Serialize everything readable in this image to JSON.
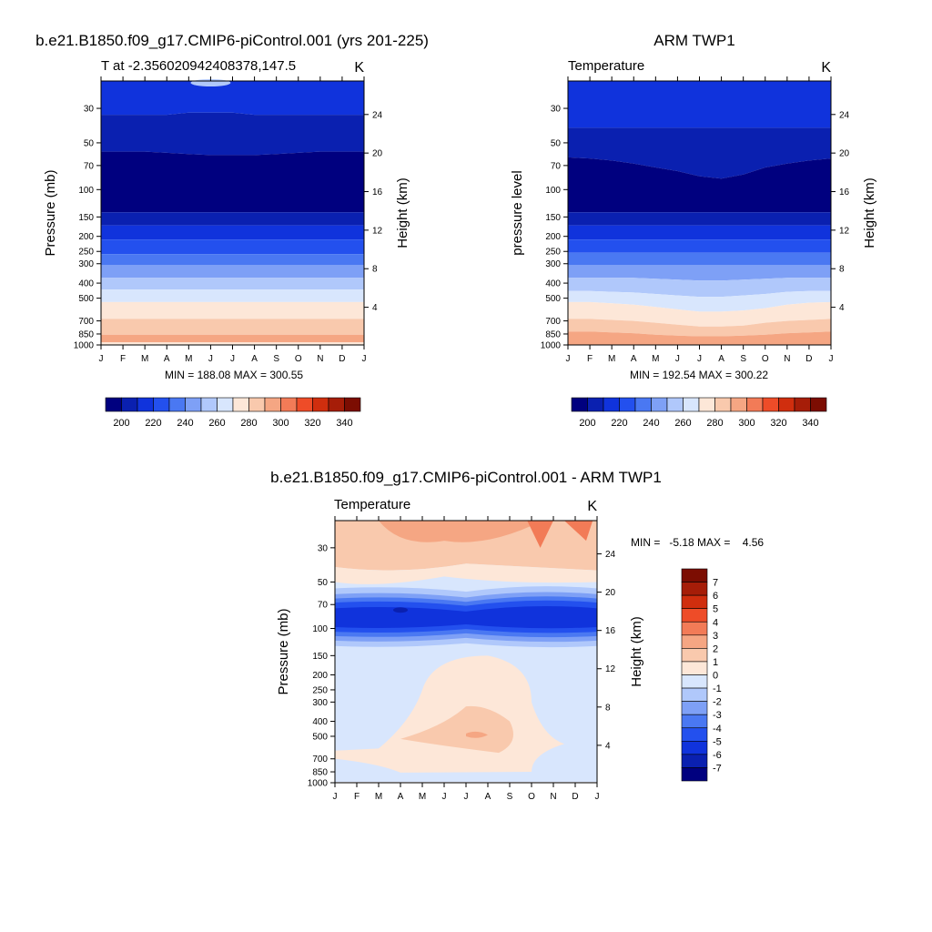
{
  "chart_data": [
    {
      "type": "contour",
      "id": "p1",
      "title": "b.e21.B1850.f09_g17.CMIP6-piControl.001 (yrs 201-225)",
      "left_string": "T at -2.356020942408378,147.5",
      "right_string": "K",
      "ylabel": "Pressure (mb)",
      "ylabel_right": "Height (km)",
      "x_ticks": [
        "J",
        "F",
        "M",
        "A",
        "M",
        "J",
        "J",
        "A",
        "S",
        "O",
        "N",
        "D",
        "J"
      ],
      "y_ticks": [
        30,
        50,
        70,
        100,
        150,
        200,
        250,
        300,
        400,
        500,
        700,
        850,
        1000
      ],
      "y_ticks_right": [
        24,
        20,
        16,
        12,
        8,
        4
      ],
      "ylim": [
        1000,
        20
      ],
      "summary": "MIN = 188.08 MAX = 300.55",
      "min": 188.08,
      "max": 300.55,
      "band_boundaries_mb": {
        "levels": [
          {
            "mb": [
              20,
              20,
              20,
              20,
              20,
              20,
              20,
              20,
              20,
              20,
              20,
              20,
              20
            ],
            "color": "#1033dc"
          },
          {
            "mb": [
              33,
              33,
              33,
              33,
              32,
              32,
              32,
              33,
              33,
              33,
              33,
              33,
              33
            ],
            "color": "#0a20b0"
          },
          {
            "mb": [
              57,
              57,
              57,
              58,
              59,
              60,
              60,
              60,
              59,
              58,
              57,
              57,
              57
            ],
            "color": "#00007f"
          },
          {
            "mb": [
              140,
              140,
              140,
              140,
              140,
              140,
              140,
              140,
              140,
              140,
              140,
              140,
              140
            ],
            "color": "#0a20b0"
          },
          {
            "mb": [
              170,
              170,
              170,
              170,
              170,
              170,
              170,
              170,
              170,
              170,
              170,
              170,
              170
            ],
            "color": "#1033dc"
          },
          {
            "mb": [
              210,
              210,
              210,
              210,
              210,
              210,
              210,
              210,
              210,
              210,
              210,
              210,
              210
            ],
            "color": "#2350ee"
          },
          {
            "mb": [
              260,
              260,
              260,
              260,
              260,
              260,
              260,
              260,
              260,
              260,
              260,
              260,
              260
            ],
            "color": "#4a78f2"
          },
          {
            "mb": [
              305,
              305,
              305,
              305,
              305,
              305,
              305,
              305,
              305,
              305,
              305,
              305,
              305
            ],
            "color": "#7ea0f6"
          },
          {
            "mb": [
              370,
              370,
              370,
              370,
              370,
              370,
              370,
              370,
              370,
              370,
              370,
              370,
              370
            ],
            "color": "#b0c8fb"
          },
          {
            "mb": [
              440,
              440,
              440,
              440,
              440,
              440,
              440,
              440,
              440,
              440,
              440,
              440,
              440
            ],
            "color": "#d8e6fd"
          },
          {
            "mb": [
              530,
              530,
              530,
              530,
              530,
              530,
              530,
              530,
              530,
              530,
              530,
              530,
              530
            ],
            "color": "#fde7d8"
          },
          {
            "mb": [
              680,
              680,
              680,
              680,
              680,
              680,
              680,
              680,
              680,
              680,
              680,
              680,
              680
            ],
            "color": "#f9c9ad"
          },
          {
            "mb": [
              860,
              860,
              860,
              860,
              860,
              860,
              860,
              860,
              860,
              860,
              860,
              860,
              860
            ],
            "color": "#f5a683"
          }
        ],
        "top_patch": {
          "color": "#b0c8fb",
          "note": "small cyan patch near top around Jun"
        }
      }
    },
    {
      "type": "contour",
      "id": "p2",
      "title": "ARM TWP1",
      "left_string": "Temperature",
      "right_string": "K",
      "ylabel": "pressure level",
      "ylabel_right": "Height (km)",
      "x_ticks": [
        "J",
        "F",
        "M",
        "A",
        "M",
        "J",
        "J",
        "A",
        "S",
        "O",
        "N",
        "D",
        "J"
      ],
      "y_ticks": [
        30,
        50,
        70,
        100,
        150,
        200,
        250,
        300,
        400,
        500,
        700,
        850,
        1000
      ],
      "y_ticks_right": [
        24,
        20,
        16,
        12,
        8,
        4
      ],
      "ylim": [
        1000,
        20
      ],
      "summary": "MIN = 192.54 MAX = 300.22",
      "min": 192.54,
      "max": 300.22,
      "band_boundaries_mb": {
        "levels": [
          {
            "mb": [
              20,
              20,
              20,
              20,
              20,
              20,
              20,
              20,
              20,
              20,
              20,
              20,
              20
            ],
            "color": "#1033dc"
          },
          {
            "mb": [
              40,
              40,
              40,
              40,
              40,
              40,
              40,
              40,
              40,
              40,
              40,
              40,
              40
            ],
            "color": "#0a20b0"
          },
          {
            "mb": [
              62,
              63,
              65,
              68,
              72,
              76,
              82,
              85,
              80,
              72,
              68,
              65,
              63
            ],
            "color": "#00007f"
          },
          {
            "mb": [
              140,
              140,
              140,
              140,
              140,
              140,
              140,
              140,
              140,
              140,
              140,
              140,
              140
            ],
            "color": "#0a20b0"
          },
          {
            "mb": [
              170,
              170,
              170,
              170,
              170,
              170,
              170,
              170,
              170,
              170,
              170,
              170,
              170
            ],
            "color": "#1033dc"
          },
          {
            "mb": [
              210,
              210,
              210,
              210,
              210,
              210,
              210,
              210,
              210,
              210,
              210,
              210,
              210
            ],
            "color": "#2350ee"
          },
          {
            "mb": [
              255,
              255,
              255,
              255,
              255,
              255,
              255,
              255,
              255,
              255,
              255,
              255,
              255
            ],
            "color": "#4a78f2"
          },
          {
            "mb": [
              305,
              305,
              305,
              305,
              305,
              305,
              305,
              305,
              305,
              305,
              305,
              305,
              305
            ],
            "color": "#7ea0f6"
          },
          {
            "mb": [
              370,
              370,
              370,
              370,
              375,
              380,
              385,
              385,
              380,
              375,
              370,
              370,
              370
            ],
            "color": "#b0c8fb"
          },
          {
            "mb": [
              450,
              450,
              455,
              460,
              470,
              480,
              490,
              490,
              480,
              470,
              455,
              450,
              450
            ],
            "color": "#d8e6fd"
          },
          {
            "mb": [
              530,
              530,
              540,
              550,
              570,
              590,
              610,
              610,
              600,
              580,
              550,
              535,
              530
            ],
            "color": "#fde7d8"
          },
          {
            "mb": [
              680,
              680,
              690,
              700,
              720,
              740,
              760,
              760,
              750,
              720,
              700,
              690,
              680
            ],
            "color": "#f9c9ad"
          },
          {
            "mb": [
              820,
              820,
              830,
              840,
              860,
              870,
              880,
              880,
              870,
              860,
              840,
              830,
              820
            ],
            "color": "#f5a683"
          }
        ]
      }
    },
    {
      "type": "contour-colorbar",
      "id": "cb1",
      "labels": [
        "200",
        "220",
        "240",
        "260",
        "280",
        "300",
        "320",
        "340"
      ],
      "colors": [
        "#00007f",
        "#0a20b0",
        "#1033dc",
        "#2350ee",
        "#4a78f2",
        "#7ea0f6",
        "#b0c8fb",
        "#d8e6fd",
        "#fde7d8",
        "#f9c9ad",
        "#f5a683",
        "#f27b57",
        "#ee4c28",
        "#d02e0e",
        "#a61d08",
        "#7c0d02"
      ]
    },
    {
      "type": "contour",
      "id": "p3",
      "title": "b.e21.B1850.f09_g17.CMIP6-piControl.001 - ARM TWP1",
      "left_string": "Temperature",
      "right_string": "K",
      "ylabel": "Pressure (mb)",
      "ylabel_right": "Height (km)",
      "x_ticks": [
        "J",
        "F",
        "M",
        "A",
        "M",
        "J",
        "J",
        "A",
        "S",
        "O",
        "N",
        "D",
        "J"
      ],
      "y_ticks": [
        30,
        50,
        70,
        100,
        150,
        200,
        250,
        300,
        400,
        500,
        700,
        850,
        1000
      ],
      "y_ticks_right": [
        24,
        20,
        16,
        12,
        8,
        4
      ],
      "ylim": [
        1000,
        20
      ],
      "summary": "MIN =   -5.18 MAX =    4.56",
      "min": -5.18,
      "max": 4.56,
      "colorbar_labels": [
        "7",
        "6",
        "5",
        "4",
        "3",
        "2",
        "1",
        "0",
        "-1",
        "-2",
        "-3",
        "-4",
        "-5",
        "-6",
        "-7"
      ],
      "colorbar_colors": [
        "#7c0d02",
        "#a61d08",
        "#d02e0e",
        "#ee4c28",
        "#f27b57",
        "#f5a683",
        "#f9c9ad",
        "#fde7d8",
        "#d8e6fd",
        "#b0c8fb",
        "#7ea0f6",
        "#4a78f2",
        "#2350ee",
        "#1033dc",
        "#0a20b0",
        "#00007f"
      ],
      "features": [
        {
          "name": "upper-warm",
          "mb_top": 20,
          "mb_bottom": 45,
          "value": 2
        },
        {
          "name": "upper-hot",
          "mb_top": 20,
          "mb_bottom": 35,
          "month": 9.5,
          "value": 3
        },
        {
          "name": "tropopause-cold",
          "mb_top": 60,
          "mb_bottom": 110,
          "value": -4
        },
        {
          "name": "mid-warm",
          "mb_top": 150,
          "mb_bottom": 900,
          "month": 6.5,
          "value": 1
        },
        {
          "name": "mid-hot",
          "mb_top": 380,
          "mb_bottom": 560,
          "month": 6.5,
          "value": 2
        }
      ]
    }
  ]
}
